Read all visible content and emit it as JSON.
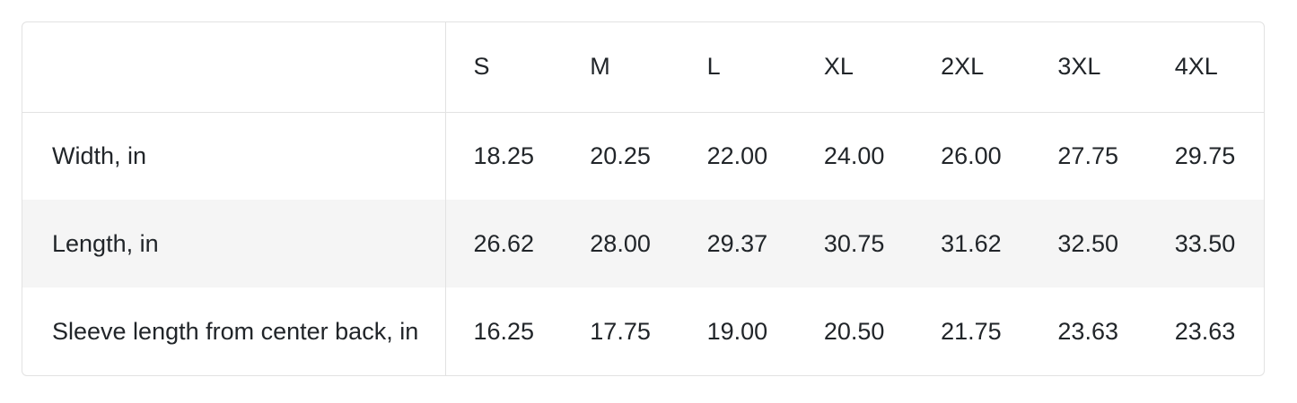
{
  "theme": {
    "border": "#e2e2e2",
    "zebra": "#f5f5f5",
    "text": "#212529",
    "bg": "#ffffff"
  },
  "size_chart": {
    "corner_label": "",
    "columns": [
      "S",
      "M",
      "L",
      "XL",
      "2XL",
      "3XL",
      "4XL"
    ],
    "rows": [
      {
        "label": "Width, in",
        "values": [
          "18.25",
          "20.25",
          "22.00",
          "24.00",
          "26.00",
          "27.75",
          "29.75"
        ]
      },
      {
        "label": "Length, in",
        "values": [
          "26.62",
          "28.00",
          "29.37",
          "30.75",
          "31.62",
          "32.50",
          "33.50"
        ]
      },
      {
        "label": "Sleeve length from center back, in",
        "values": [
          "16.25",
          "17.75",
          "19.00",
          "20.50",
          "21.75",
          "23.63",
          "23.63"
        ]
      }
    ]
  }
}
